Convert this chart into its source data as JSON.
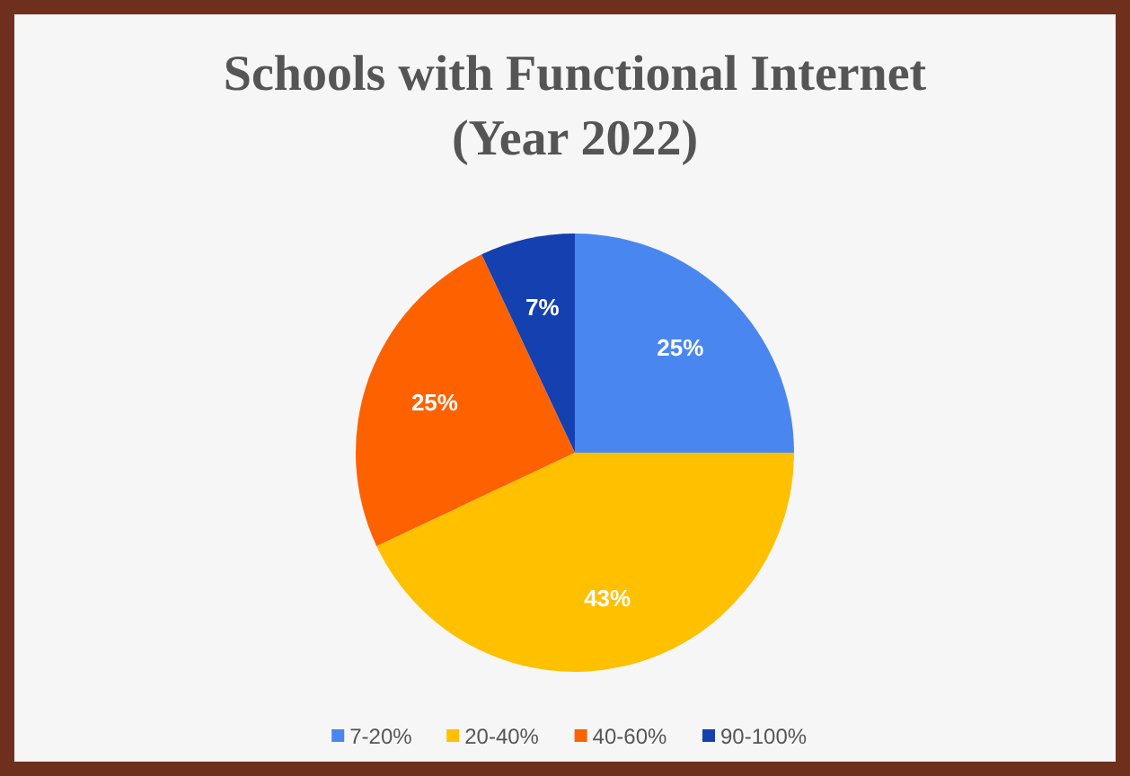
{
  "chart_data": {
    "type": "pie",
    "title": "Schools with Functional Internet\n(Year 2022)",
    "categories": [
      "7-20%",
      "20-40%",
      "40-60%",
      "90-100%"
    ],
    "values": [
      25,
      43,
      25,
      7
    ],
    "colors": [
      "#4a86f0",
      "#ffc000",
      "#fe6100",
      "#1540b0"
    ],
    "value_labels": [
      "25%",
      "43%",
      "25%",
      "7%"
    ],
    "legend": "bottom"
  }
}
